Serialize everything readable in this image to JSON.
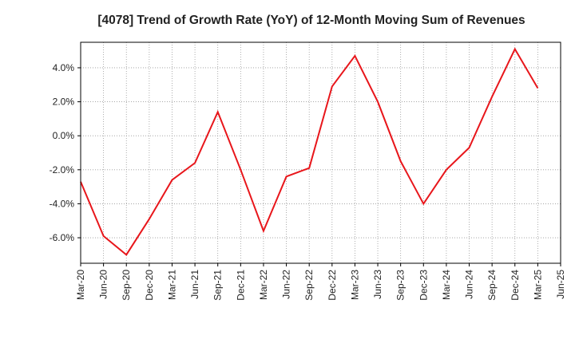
{
  "chart_data": {
    "type": "line",
    "title": "[4078]  Trend of Growth Rate (YoY) of 12-Month Moving Sum of Revenues",
    "xlabel": "",
    "ylabel": "",
    "x_tick_labels": [
      "Mar-20",
      "Jun-20",
      "Sep-20",
      "Dec-20",
      "Mar-21",
      "Jun-21",
      "Sep-21",
      "Dec-21",
      "Mar-22",
      "Jun-22",
      "Sep-22",
      "Dec-22",
      "Mar-23",
      "Jun-23",
      "Sep-23",
      "Dec-23",
      "Mar-24",
      "Jun-24",
      "Sep-24",
      "Dec-24",
      "Mar-25",
      "Jun-25"
    ],
    "y_ticks": [
      4.0,
      2.0,
      0.0,
      -2.0,
      -4.0,
      -6.0
    ],
    "y_tick_labels": [
      "4.0%",
      "2.0%",
      "0.0%",
      "-2.0%",
      "-4.0%",
      "-6.0%"
    ],
    "ylim": [
      -7.5,
      5.5
    ],
    "grid": true,
    "series": [
      {
        "color": "#e8161b",
        "x": [
          "Mar-20",
          "Jun-20",
          "Sep-20",
          "Dec-20",
          "Mar-21",
          "Jun-21",
          "Sep-21",
          "Dec-21",
          "Mar-22",
          "Jun-22",
          "Sep-22",
          "Dec-22",
          "Mar-23",
          "Jun-23",
          "Sep-23",
          "Dec-23",
          "Mar-24",
          "Jun-24",
          "Sep-24",
          "Dec-24",
          "Mar-25"
        ],
        "values": [
          -2.7,
          -5.9,
          -7.0,
          -4.9,
          -2.6,
          -1.6,
          1.4,
          -2.0,
          -5.6,
          -2.4,
          -1.9,
          2.9,
          4.7,
          2.0,
          -1.5,
          -4.0,
          -2.0,
          -0.7,
          2.3,
          5.1,
          2.8
        ]
      }
    ]
  }
}
